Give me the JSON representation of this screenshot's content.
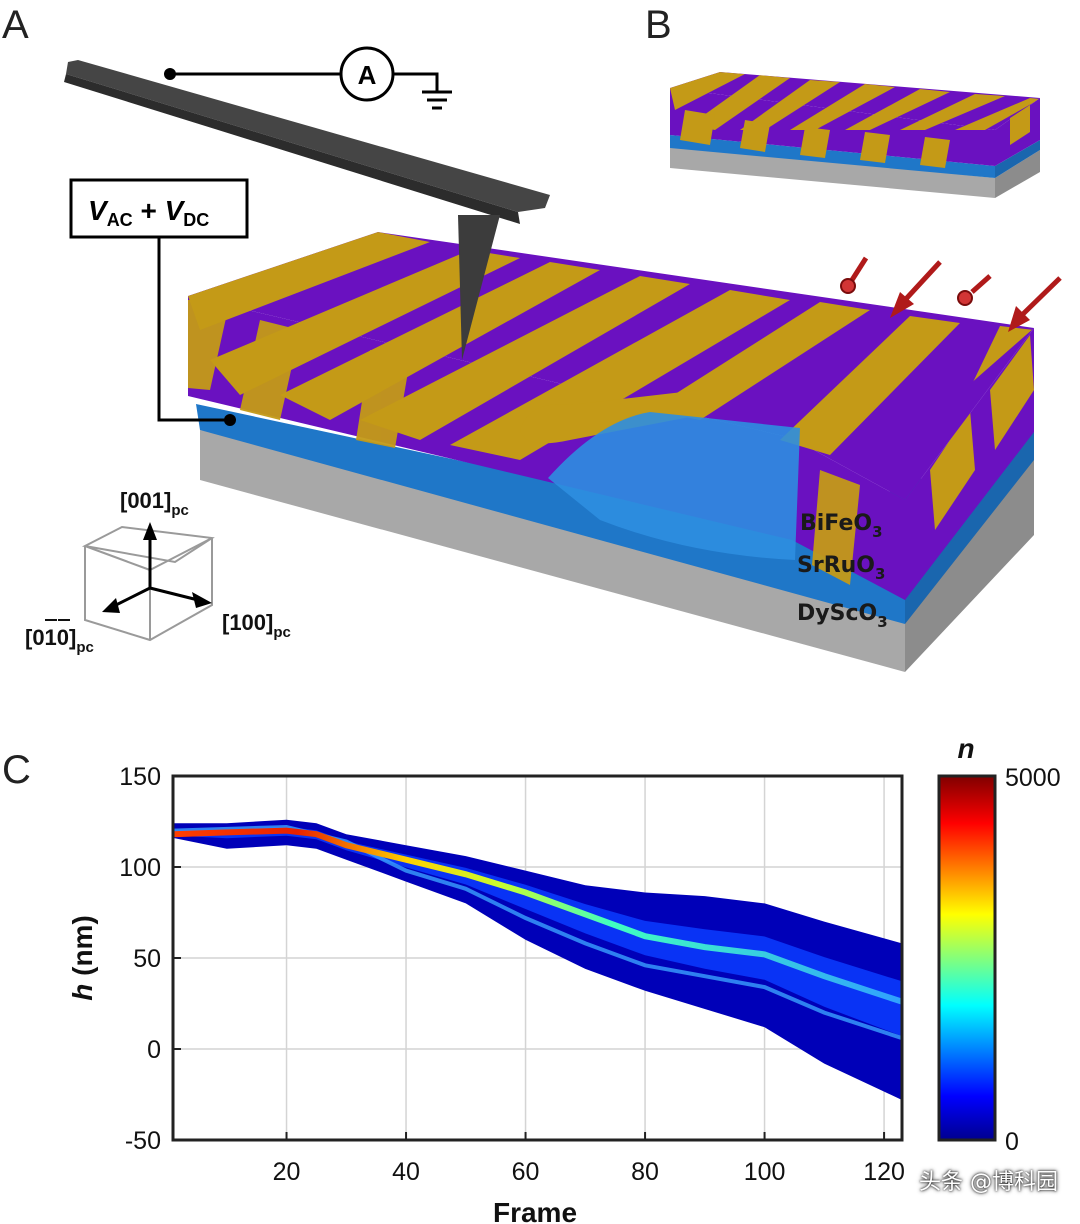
{
  "panels": {
    "a": "A",
    "b": "B",
    "c": "C"
  },
  "ammeter_symbol": "A",
  "voltage": {
    "v1": "V",
    "sub1": "AC",
    "plus": " + ",
    "v2": "V",
    "sub2": "DC"
  },
  "layers": {
    "top": {
      "base": "BiFeO",
      "sub": "3"
    },
    "middle": {
      "base": "SrRuO",
      "sub": "3"
    },
    "bottom": {
      "base": "DyScO",
      "sub": "3"
    }
  },
  "axes_3d": {
    "z": {
      "label": "[001]",
      "sub": "pc"
    },
    "x": {
      "label": "[100]",
      "sub": "pc"
    },
    "y": {
      "label": "[010]",
      "sub": "pc",
      "overbar_note": "0 and 1 carry overbars"
    }
  },
  "colors": {
    "purple": "#6a11c0",
    "gold": "#c49a17",
    "srruo3": "#1f77c8",
    "dysco3": "#9a9a9a",
    "tip": "#3c3c3c",
    "arrow": "#b01a1a"
  },
  "chart_data": {
    "type": "heatmap",
    "xlabel": "Frame",
    "ylabel": "h (nm)",
    "xlim": [
      1,
      123
    ],
    "ylim": [
      -50,
      150
    ],
    "xticks": [
      20,
      40,
      60,
      80,
      100,
      120
    ],
    "yticks": [
      -50,
      0,
      50,
      100,
      150
    ],
    "grid": true,
    "colorbar": {
      "label": "n",
      "min": 0,
      "max": 5000,
      "colormap": "jet"
    },
    "upper_edge": [
      [
        1,
        124
      ],
      [
        10,
        124
      ],
      [
        20,
        126
      ],
      [
        25,
        124
      ],
      [
        30,
        118
      ],
      [
        40,
        112
      ],
      [
        50,
        106
      ],
      [
        60,
        98
      ],
      [
        70,
        90
      ],
      [
        80,
        86
      ],
      [
        90,
        84
      ],
      [
        100,
        80
      ],
      [
        110,
        70
      ],
      [
        123,
        58
      ]
    ],
    "lower_edge": [
      [
        1,
        116
      ],
      [
        10,
        110
      ],
      [
        20,
        112
      ],
      [
        25,
        110
      ],
      [
        30,
        104
      ],
      [
        40,
        92
      ],
      [
        50,
        80
      ],
      [
        60,
        60
      ],
      [
        70,
        44
      ],
      [
        80,
        32
      ],
      [
        90,
        22
      ],
      [
        100,
        12
      ],
      [
        110,
        -8
      ],
      [
        123,
        -28
      ]
    ],
    "ridge": [
      [
        1,
        118
      ],
      [
        10,
        119
      ],
      [
        20,
        120
      ],
      [
        25,
        118
      ],
      [
        30,
        112
      ],
      [
        40,
        104
      ],
      [
        50,
        96
      ],
      [
        60,
        86
      ],
      [
        70,
        74
      ],
      [
        80,
        62
      ],
      [
        90,
        56
      ],
      [
        100,
        52
      ],
      [
        110,
        40
      ],
      [
        123,
        26
      ]
    ],
    "secondary_ridge": [
      [
        1,
        120
      ],
      [
        20,
        122
      ],
      [
        30,
        114
      ],
      [
        40,
        98
      ],
      [
        50,
        88
      ],
      [
        60,
        72
      ],
      [
        70,
        58
      ],
      [
        80,
        46
      ],
      [
        90,
        40
      ],
      [
        100,
        34
      ],
      [
        110,
        20
      ],
      [
        123,
        6
      ]
    ]
  },
  "watermark": "头条 @博科园"
}
